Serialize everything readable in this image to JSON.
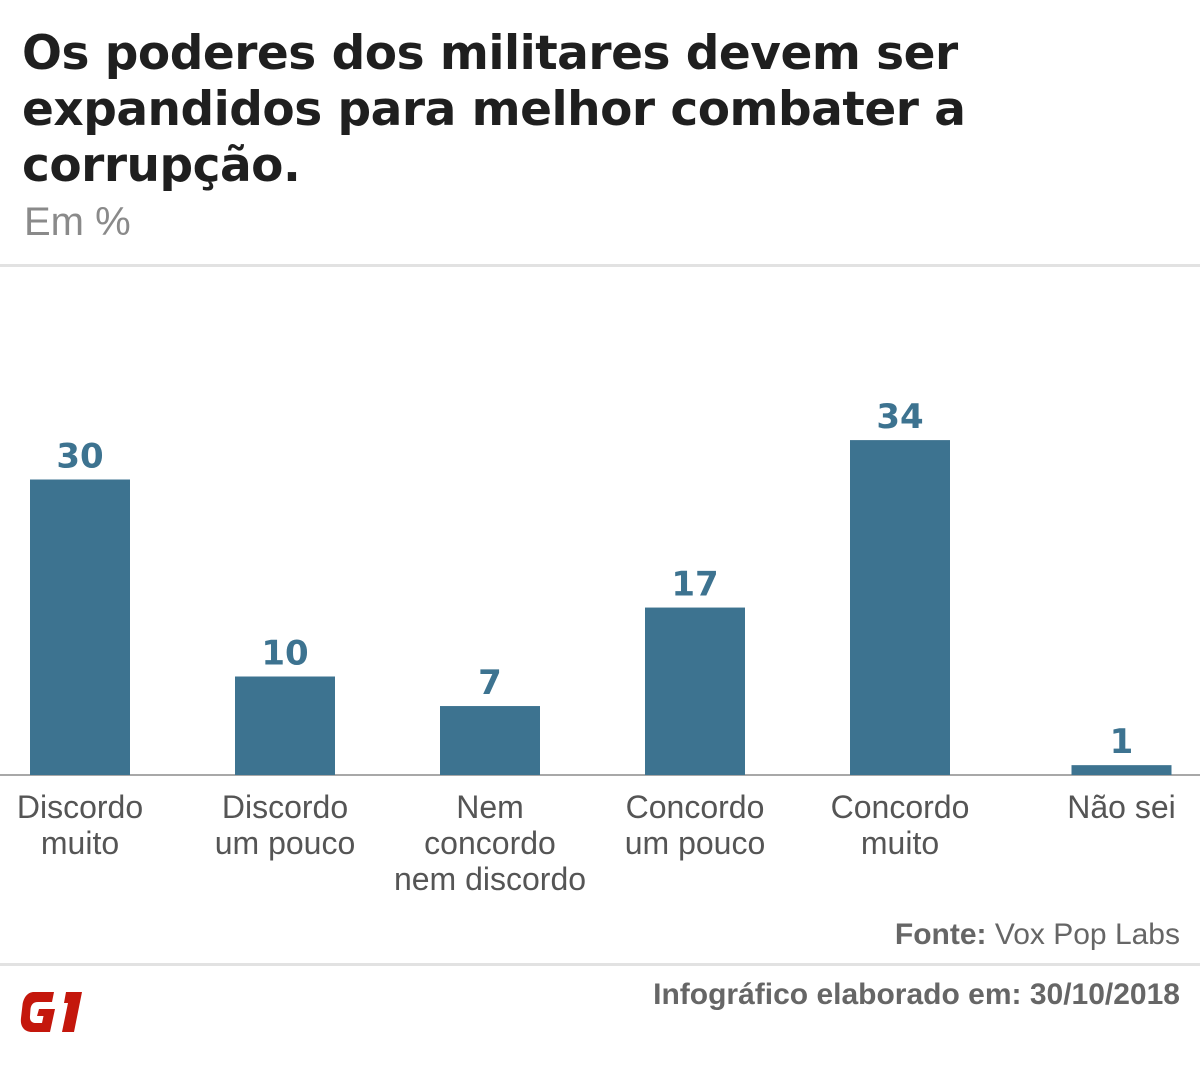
{
  "header": {
    "title": "Os poderes dos militares devem ser expandidos para melhor combater a corrupção.",
    "subtitle": "Em %"
  },
  "chart_data": {
    "type": "bar",
    "title": "Os poderes dos militares devem ser expandidos para melhor combater a corrupção.",
    "ylabel": "Em %",
    "categories": [
      [
        "Discordo",
        "muito"
      ],
      [
        "Discordo",
        "um pouco"
      ],
      [
        "Nem",
        "concordo",
        "nem discordo"
      ],
      [
        "Concordo",
        "um pouco"
      ],
      [
        "Concordo",
        "muito"
      ],
      [
        "Não sei"
      ]
    ],
    "values": [
      30,
      10,
      7,
      17,
      34,
      1
    ],
    "ylim": [
      0,
      40
    ],
    "grid": false,
    "bar_color": "#3d7390",
    "label_color": "#3d7390"
  },
  "footer": {
    "source_label": "Fonte:",
    "source_value": " Vox Pop Labs",
    "note": "Infográfico elaborado em: 30/10/2018",
    "logo_text": "G1",
    "logo_color": "#c4170c"
  }
}
